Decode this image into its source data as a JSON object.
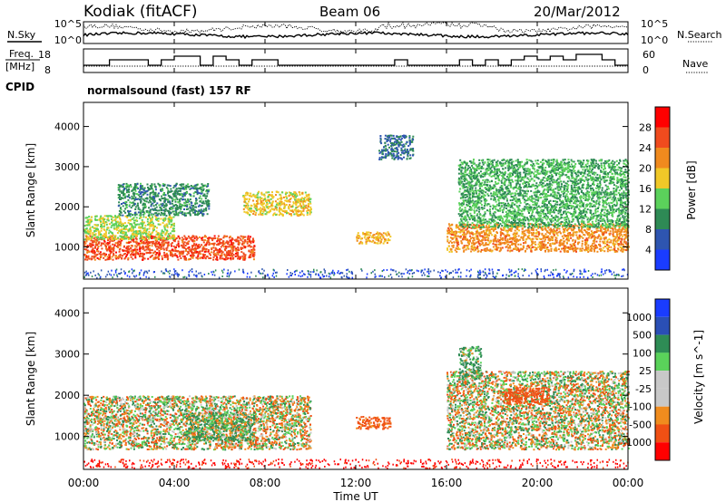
{
  "header": {
    "station": "Kodiak (fitACF)",
    "beam": "Beam 06",
    "date": "20/Mar/2012"
  },
  "noise_panel": {
    "left_label": "N.Sky",
    "right_label": "N.Search",
    "tick_top": "10^5",
    "tick_bottom": "10^0"
  },
  "freq_panel": {
    "label_line1": "Freq.",
    "label_line2": "[MHz]",
    "left_ticks": [
      "18",
      "8"
    ],
    "right_ticks": [
      "60",
      "0"
    ],
    "right_label": "Nave"
  },
  "cpid": {
    "label": "CPID",
    "program": "normalsound (fast) 157 RF"
  },
  "colors": {
    "power": [
      "#1a3cff",
      "#2e55b0",
      "#2e8a55",
      "#5bd15b",
      "#f0c828",
      "#f08a1e",
      "#f04b1e",
      "#ff0000"
    ],
    "velocity": [
      "#ff0000",
      "#f05014",
      "#f08c1e",
      "#c8c8c8",
      "#c8c8c8",
      "#5ad25a",
      "#2e8c55",
      "#2a4fb5",
      "#1a3cff"
    ]
  },
  "chart_data": [
    {
      "type": "heatmap",
      "panel": "power",
      "ylabel": "Slant Range [km]",
      "yticks": [
        "1000",
        "2000",
        "3000",
        "4000"
      ],
      "ylim": [
        200,
        4600
      ],
      "colorbar_label": "Power [dB]",
      "colorbar_ticks": [
        "4",
        "8",
        "12",
        "16",
        "20",
        "24",
        "28"
      ],
      "clim": [
        0,
        32
      ],
      "features": [
        {
          "t0": 0.0,
          "t1": 7.5,
          "r0": 700,
          "r1": 1300,
          "value": 26
        },
        {
          "t0": 0.0,
          "t1": 4.0,
          "r0": 1200,
          "r1": 1800,
          "value": 16
        },
        {
          "t0": 1.5,
          "t1": 5.5,
          "r0": 1800,
          "r1": 2600,
          "value": 10
        },
        {
          "t0": 7.0,
          "t1": 10.0,
          "r0": 1800,
          "r1": 2400,
          "value": 18
        },
        {
          "t0": 12.0,
          "t1": 13.5,
          "r0": 1100,
          "r1": 1400,
          "value": 20
        },
        {
          "t0": 13.0,
          "t1": 14.5,
          "r0": 3200,
          "r1": 3800,
          "value": 8
        },
        {
          "t0": 16.0,
          "t1": 24.0,
          "r0": 900,
          "r1": 1600,
          "value": 22
        },
        {
          "t0": 16.5,
          "t1": 24.0,
          "r0": 1500,
          "r1": 3200,
          "value": 12
        }
      ]
    },
    {
      "type": "heatmap",
      "panel": "velocity",
      "ylabel": "Slant Range [km]",
      "yticks": [
        "1000",
        "2000",
        "3000",
        "4000"
      ],
      "ylim": [
        200,
        4600
      ],
      "colorbar_label": "Velocity [m s^-1]",
      "colorbar_ticks": [
        "1000",
        "500",
        "100",
        "25",
        "-25",
        "-100",
        "-500",
        "-1000"
      ],
      "clim": [
        -1000,
        1000
      ],
      "features": [
        {
          "t0": 0.0,
          "t1": 10.0,
          "r0": 700,
          "r1": 2000,
          "value": 0
        },
        {
          "t0": 4.5,
          "t1": 7.5,
          "r0": 900,
          "r1": 1600,
          "value": 100
        },
        {
          "t0": 12.0,
          "t1": 13.5,
          "r0": 1200,
          "r1": 1500,
          "value": -200
        },
        {
          "t0": 16.0,
          "t1": 24.0,
          "r0": 700,
          "r1": 2600,
          "value": 0
        },
        {
          "t0": 16.5,
          "t1": 17.5,
          "r0": 2400,
          "r1": 3200,
          "value": 100
        },
        {
          "t0": 18.5,
          "t1": 20.5,
          "r0": 1800,
          "r1": 2200,
          "value": -300
        }
      ]
    }
  ],
  "xaxis": {
    "ticks": [
      "00:00",
      "04:00",
      "08:00",
      "12:00",
      "16:00",
      "20:00",
      "00:00"
    ],
    "label": "Time UT"
  }
}
